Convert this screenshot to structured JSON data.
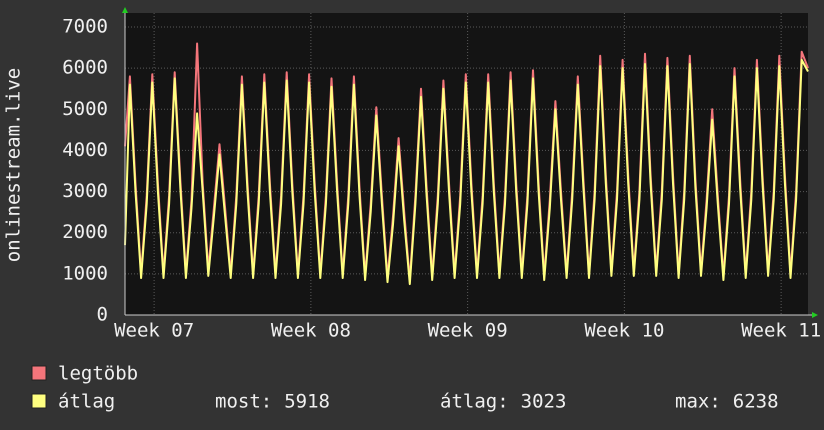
{
  "chart_data": {
    "type": "line",
    "y_label": "onlinestream.live",
    "xlim": [
      0,
      30.5
    ],
    "ylim": [
      0,
      7000
    ],
    "yticks": [
      0,
      1000,
      2000,
      3000,
      4000,
      5000,
      6000,
      7000
    ],
    "xticks": [
      {
        "value": 1.3,
        "label": "Week 07"
      },
      {
        "value": 8.3,
        "label": "Week 08"
      },
      {
        "value": 15.3,
        "label": "Week 09"
      },
      {
        "value": 22.3,
        "label": "Week 10"
      },
      {
        "value": 29.3,
        "label": "Week 11"
      }
    ],
    "grid": true,
    "x": [
      0,
      0.22,
      0.47,
      0.72,
      0.97,
      1.22,
      1.47,
      1.72,
      1.97,
      2.22,
      2.47,
      2.72,
      2.97,
      3.22,
      3.47,
      3.72,
      3.97,
      4.22,
      4.47,
      4.72,
      4.97,
      5.22,
      5.47,
      5.72,
      5.97,
      6.22,
      6.47,
      6.72,
      6.97,
      7.22,
      7.47,
      7.72,
      7.97,
      8.22,
      8.47,
      8.72,
      8.97,
      9.22,
      9.47,
      9.72,
      9.97,
      10.22,
      10.47,
      10.72,
      10.97,
      11.22,
      11.47,
      11.72,
      11.97,
      12.22,
      12.47,
      12.72,
      12.97,
      13.22,
      13.47,
      13.72,
      13.97,
      14.22,
      14.47,
      14.72,
      14.97,
      15.22,
      15.47,
      15.72,
      15.97,
      16.22,
      16.47,
      16.72,
      16.97,
      17.22,
      17.47,
      17.72,
      17.97,
      18.22,
      18.47,
      18.72,
      18.97,
      19.22,
      19.47,
      19.72,
      19.97,
      20.22,
      20.47,
      20.72,
      20.97,
      21.22,
      21.47,
      21.72,
      21.97,
      22.22,
      22.47,
      22.72,
      22.97,
      23.22,
      23.47,
      23.72,
      23.97,
      24.22,
      24.47,
      24.72,
      24.97,
      25.22,
      25.47,
      25.72,
      25.97,
      26.22,
      26.47,
      26.72,
      26.97,
      27.22,
      27.47,
      27.72,
      27.97,
      28.22,
      28.47,
      28.72,
      28.97,
      29.22,
      29.47,
      29.72,
      29.97,
      30.22,
      30.5
    ],
    "series": [
      {
        "name": "legtöbb",
        "color": "#f4757b",
        "values": [
          4100,
          5800,
          3200,
          1000,
          2900,
          5850,
          3200,
          1000,
          2900,
          5900,
          3300,
          1000,
          2800,
          6600,
          3200,
          1100,
          2600,
          4150,
          2600,
          1000,
          2900,
          5800,
          3200,
          1000,
          2900,
          5850,
          3200,
          1000,
          2900,
          5900,
          3200,
          1000,
          2900,
          5850,
          3200,
          1000,
          2900,
          5750,
          3200,
          1000,
          2900,
          5800,
          3100,
          950,
          2700,
          5050,
          2900,
          900,
          2400,
          4300,
          2500,
          850,
          2900,
          5500,
          3100,
          950,
          2900,
          5700,
          3200,
          1000,
          2900,
          5850,
          3200,
          1000,
          2900,
          5850,
          3200,
          1000,
          2900,
          5900,
          3200,
          1000,
          2900,
          5950,
          3200,
          950,
          2800,
          5200,
          3000,
          1000,
          3000,
          5800,
          3300,
          1000,
          3000,
          6300,
          3400,
          1050,
          3000,
          6200,
          3400,
          1050,
          3000,
          6350,
          3400,
          1050,
          3000,
          6250,
          3400,
          1000,
          3000,
          6300,
          3300,
          1050,
          2800,
          5000,
          2900,
          950,
          2900,
          6000,
          3300,
          1000,
          3000,
          6200,
          3400,
          1050,
          3000,
          6300,
          3400,
          1000,
          3000,
          6400,
          6000
        ]
      },
      {
        "name": "átlag",
        "color": "#ffff80",
        "values": [
          1700,
          5600,
          3000,
          900,
          2700,
          5650,
          3000,
          900,
          2700,
          5750,
          3100,
          900,
          2600,
          4900,
          3000,
          950,
          2400,
          3900,
          2400,
          900,
          2700,
          5600,
          3000,
          900,
          2700,
          5650,
          3000,
          900,
          2700,
          5700,
          3000,
          900,
          2700,
          5650,
          3000,
          900,
          2700,
          5550,
          3000,
          900,
          2700,
          5600,
          2900,
          850,
          2500,
          4850,
          2700,
          800,
          2200,
          4100,
          2300,
          750,
          2700,
          5300,
          2900,
          850,
          2700,
          5500,
          3000,
          900,
          2700,
          5650,
          3000,
          900,
          2700,
          5650,
          3000,
          900,
          2700,
          5700,
          3000,
          900,
          2700,
          5750,
          3000,
          850,
          2600,
          5000,
          2800,
          900,
          2800,
          5600,
          3100,
          900,
          2800,
          6050,
          3200,
          950,
          2800,
          6000,
          3200,
          950,
          2800,
          6100,
          3200,
          950,
          2800,
          6050,
          3200,
          900,
          2800,
          6100,
          3100,
          950,
          2600,
          4750,
          2700,
          850,
          2700,
          5800,
          3100,
          900,
          2800,
          6000,
          3200,
          950,
          2800,
          6050,
          3200,
          900,
          2800,
          6200,
          5918
        ]
      }
    ],
    "stats": [
      {
        "label": "most:",
        "value": 5918
      },
      {
        "label": "átlag:",
        "value": 3023
      },
      {
        "label": "max:",
        "value": 6238
      }
    ]
  }
}
